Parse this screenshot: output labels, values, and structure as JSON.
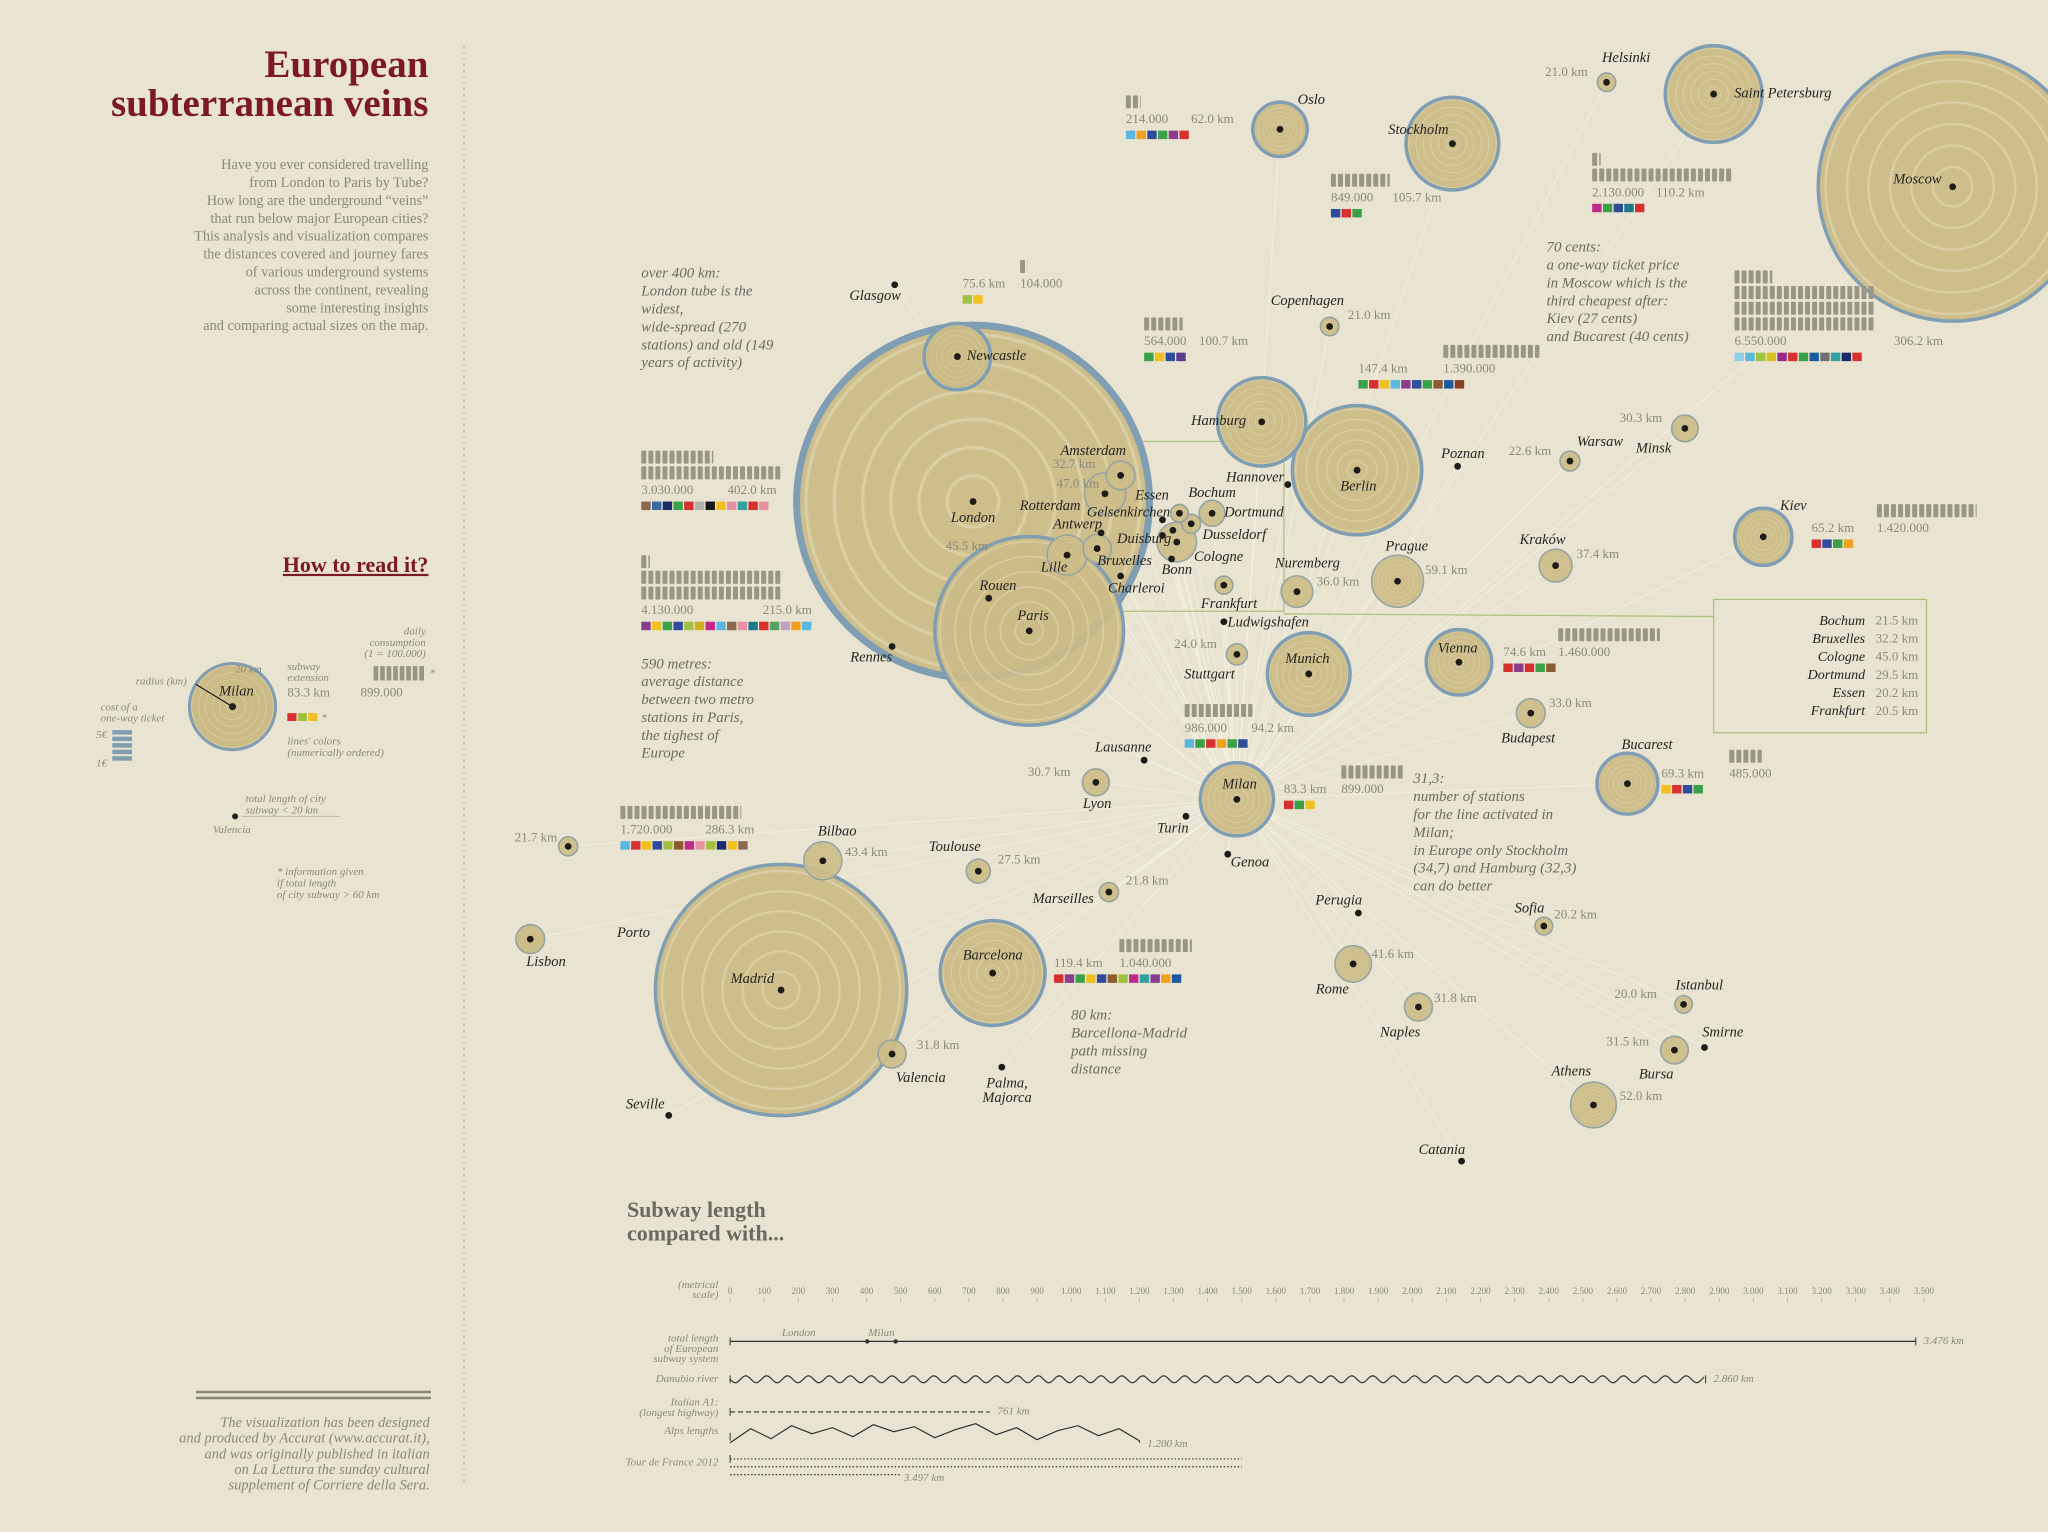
{
  "header": {
    "title": [
      "European",
      "subterranean veins"
    ],
    "intro": [
      "Have you ever considered travelling",
      "from London to Paris by Tube?",
      "How long are the underground “veins”",
      "that run below major European cities?",
      "This analysis and visualization compares",
      "the distances covered and journey fares",
      "of various underground systems",
      "across the continent, revealing",
      "some interesting insights",
      "and comparing actual sizes on the map."
    ]
  },
  "how_to_read": {
    "heading": "How to read it?",
    "radius": "radius (km)",
    "radius_sample": "20 km",
    "city": "Milan",
    "extension": [
      "subway",
      "extension"
    ],
    "extension_sample": "83.3 km",
    "consumption": [
      "daily",
      "consumption",
      "(1 = 100.000)"
    ],
    "consumption_sample": "899.000",
    "asterisk": "*",
    "ticket": [
      "cost of a",
      "one-way ticket"
    ],
    "ticket_scale": [
      "5€",
      "1€"
    ],
    "colors": [
      "lines' colors",
      "(numerically ordered)"
    ],
    "small": [
      "total length of city",
      "subway < 20 km"
    ],
    "small_city": "Valencia",
    "note": [
      "* information given",
      "if total length",
      "of city subway > 60 km"
    ]
  },
  "cities": [
    {
      "name": "Oslo",
      "km": 62.0,
      "km_label": "62.0 km",
      "riders": 214000,
      "riders_label": "214.000",
      "colors": [
        "#5bb6e0",
        "#f0a020",
        "#2e4c9a",
        "#3aa04a",
        "#8a3d8f",
        "#d63030"
      ]
    },
    {
      "name": "Stockholm",
      "km": 105.7,
      "km_label": "105.7 km",
      "riders": 849000,
      "riders_label": "849.000",
      "colors": [
        "#2e4c9a",
        "#d63030",
        "#3aa04a"
      ]
    },
    {
      "name": "Helsinki",
      "km": 21.0,
      "km_label": "21.0 km"
    },
    {
      "name": "Saint Petersburg",
      "km": 110.2,
      "km_label": "110.2 km",
      "riders": 2130000,
      "riders_label": "2.130.000",
      "colors": [
        "#c0288a",
        "#3aa04a",
        "#2e4c9a",
        "#1a7a8a",
        "#d63030"
      ]
    },
    {
      "name": "Moscow",
      "km": 306.2,
      "km_label": "306.2 km",
      "riders": 6550000,
      "riders_label": "6.550.000",
      "colors": [
        "#8fd0e8",
        "#5bb6e0",
        "#a0c040",
        "#d8c020",
        "#9a2a8a",
        "#d63030",
        "#3aa04a",
        "#1a5aa0",
        "#707070",
        "#30a0a0",
        "#1a2a6a",
        "#d63030"
      ]
    },
    {
      "name": "Copenhagen",
      "km": 21.0,
      "km_label": "21.0 km"
    },
    {
      "name": "Hamburg",
      "km": 100.7,
      "km_label": "100.7 km",
      "riders": 564000,
      "riders_label": "564.000",
      "colors": [
        "#3aa04a",
        "#f0c020",
        "#2e4c9a",
        "#5a3a8a"
      ]
    },
    {
      "name": "Berlin",
      "km": 147.4,
      "km_label": "147.4 km",
      "riders": 1390000,
      "riders_label": "1.390.000",
      "colors": [
        "#3aa04a",
        "#d63030",
        "#f0c020",
        "#5bb6e0",
        "#8a3d8f",
        "#2e4c9a",
        "#3aa04a",
        "#8a5a30",
        "#1a5aa0",
        "#8a3d20"
      ]
    },
    {
      "name": "Newcastle",
      "km": 75.6,
      "km_label": "75.6 km",
      "riders": 104000,
      "riders_label": "104.000",
      "colors": [
        "#a0c040",
        "#f0c020"
      ]
    },
    {
      "name": "London",
      "km": 402.0,
      "km_label": "402.0 km",
      "riders": 3030000,
      "riders_label": "3.030.000",
      "colors": [
        "#8a6a50",
        "#3a6aa0",
        "#1a2a6a",
        "#3aa04a",
        "#d63030",
        "#b0b0b0",
        "#181818",
        "#f0c020",
        "#e890a0",
        "#30a0a0",
        "#d63030",
        "#e890a0"
      ]
    },
    {
      "name": "Paris",
      "km": 215.0,
      "km_label": "215.0 km",
      "riders": 4130000,
      "riders_label": "4.130.000",
      "colors": [
        "#8a3d8f",
        "#f0c020",
        "#3aa04a",
        "#2e4c9a",
        "#a0c040",
        "#d0b020",
        "#c0288a",
        "#5bb6e0",
        "#8a6a50",
        "#e890a0",
        "#1a7a8a",
        "#d63030",
        "#5aa060",
        "#c0a0c0",
        "#f0a020",
        "#5bb6e0"
      ]
    },
    {
      "name": "Amsterdam",
      "km": 32.7,
      "km_label": "32.7 km"
    },
    {
      "name": "Rotterdam",
      "km": 47.0,
      "km_label": "47.0 km"
    },
    {
      "name": "Lille",
      "km": 45.5,
      "km_label": "45.5 km"
    },
    {
      "name": "Warsaw",
      "km": 22.6,
      "km_label": "22.6 km"
    },
    {
      "name": "Minsk",
      "km": 30.3,
      "km_label": "30.3 km"
    },
    {
      "name": "Prague",
      "km": 59.1,
      "km_label": "59.1 km"
    },
    {
      "name": "Kraków",
      "km": 37.4,
      "km_label": "37.4 km"
    },
    {
      "name": "Nuremberg",
      "km": 36.0,
      "km_label": "36.0 km"
    },
    {
      "name": "Kiev",
      "km": 65.2,
      "km_label": "65.2 km",
      "riders": 1420000,
      "riders_label": "1.420.000",
      "colors": [
        "#d63030",
        "#2e4c9a",
        "#3aa04a",
        "#f0a020"
      ]
    },
    {
      "name": "Munich",
      "km": 94.2,
      "km_label": "94.2 km",
      "riders": 986000,
      "riders_label": "986.000",
      "colors": [
        "#5bb6e0",
        "#3aa04a",
        "#d63030",
        "#f0a020",
        "#3aa04a",
        "#2e4c9a"
      ]
    },
    {
      "name": "Stuttgart",
      "km": 24.0,
      "km_label": "24.0 km"
    },
    {
      "name": "Vienna",
      "km": 74.6,
      "km_label": "74.6 km",
      "riders": 1460000,
      "riders_label": "1.460.000",
      "colors": [
        "#d63030",
        "#8a3d8f",
        "#d63030",
        "#3aa04a",
        "#8a5a30"
      ]
    },
    {
      "name": "Budapest",
      "km": 33.0,
      "km_label": "33.0 km"
    },
    {
      "name": "Bucarest",
      "km": 69.3,
      "km_label": "69.3 km",
      "riders": 485000,
      "riders_label": "485.000",
      "colors": [
        "#f0c020",
        "#d63030",
        "#2e4c9a",
        "#3aa04a"
      ]
    },
    {
      "name": "Milan",
      "km": 83.3,
      "km_label": "83.3 km",
      "riders": 899000,
      "riders_label": "899.000",
      "colors": [
        "#d63030",
        "#3aa04a",
        "#f0c020"
      ]
    },
    {
      "name": "Lyon",
      "km": 30.7,
      "km_label": "30.7 km"
    },
    {
      "name": "Toulouse",
      "km": 27.5,
      "km_label": "27.5 km"
    },
    {
      "name": "Marseilles",
      "km": 21.8,
      "km_label": "21.8 km"
    },
    {
      "name": "Bilbao",
      "km": 43.4,
      "km_label": "43.4 km"
    },
    {
      "name": "Porto",
      "km": 21.7,
      "km_label": "21.7 km"
    },
    {
      "name": "Madrid",
      "km": 286.3,
      "km_label": "286.3 km",
      "riders": 1720000,
      "riders_label": "1.720.000",
      "colors": [
        "#5bb6e0",
        "#d63030",
        "#f0c020",
        "#2e4c9a",
        "#a0c040",
        "#8a5a30",
        "#c0288a",
        "#e890a0",
        "#a0c040",
        "#1a2a6a",
        "#f0c020",
        "#8a6a50"
      ]
    },
    {
      "name": "Barcelona",
      "km": 119.4,
      "km_label": "119.4 km",
      "riders": 1040000,
      "riders_label": "1.040.000",
      "colors": [
        "#d63030",
        "#8a3d8f",
        "#3aa04a",
        "#f0c020",
        "#2e4c9a",
        "#8a5a30",
        "#a0c040",
        "#c0288a",
        "#30a0a0",
        "#8a3d8f",
        "#f0a020",
        "#1a5aa0"
      ]
    },
    {
      "name": "Valencia",
      "km": 31.8,
      "km_label": "31.8 km"
    },
    {
      "name": "Rome",
      "km": 41.6,
      "km_label": "41.6 km"
    },
    {
      "name": "Naples",
      "km": 31.8,
      "km_label": "31.8 km"
    },
    {
      "name": "Sofia",
      "km": 20.2,
      "km_label": "20.2 km"
    },
    {
      "name": "Istanbul",
      "km": 20.0,
      "km_label": "20.0 km"
    },
    {
      "name": "Bursa",
      "km": 31.5,
      "km_label": "31.5 km"
    },
    {
      "name": "Athens",
      "km": 52.0,
      "km_label": "52.0 km"
    }
  ],
  "places": [
    {
      "name": "Glasgow"
    },
    {
      "name": "Rennes"
    },
    {
      "name": "Rouen"
    },
    {
      "name": "Antwerp"
    },
    {
      "name": "Gelsenkirchen"
    },
    {
      "name": "Duisburg"
    },
    {
      "name": "Dusseldorf"
    },
    {
      "name": "Bonn"
    },
    {
      "name": "Charleroi"
    },
    {
      "name": "Hannover"
    },
    {
      "name": "Poznan"
    },
    {
      "name": "Ludwigshafen"
    },
    {
      "name": "Lausanne"
    },
    {
      "name": "Turin"
    },
    {
      "name": "Genoa"
    },
    {
      "name": "Perugia"
    },
    {
      "name": "Lisbon"
    },
    {
      "name": [
        "Palma,",
        "Majorca"
      ]
    },
    {
      "name": "Seville"
    },
    {
      "name": "Catania"
    },
    {
      "name": "Smirne"
    }
  ],
  "rhine_box": {
    "rows": [
      {
        "name": "Bochum",
        "km": 21.5,
        "km_label": "21.5 km"
      },
      {
        "name": "Bruxelles",
        "km": 32.2,
        "km_label": "32.2 km"
      },
      {
        "name": "Cologne",
        "km": 45.0,
        "km_label": "45.0 km"
      },
      {
        "name": "Dortmund",
        "km": 29.5,
        "km_label": "29.5 km"
      },
      {
        "name": "Essen",
        "km": 20.2,
        "km_label": "20.2 km"
      },
      {
        "name": "Frankfurt",
        "km": 20.5,
        "km_label": "20.5 km"
      }
    ]
  },
  "annotations": [
    [
      "over 400 km:",
      "London tube is the",
      "widest,",
      "wide-spread (270",
      "stations) and old (149",
      "years of activity)"
    ],
    [
      "590 metres:",
      "average distance",
      "between two metro",
      "stations in Paris,",
      "the tighest of",
      "Europe"
    ],
    [
      "70 cents:",
      "a one-way ticket price",
      "in Moscow which is the",
      "third cheapest after:",
      "Kiev (27 cents)",
      "and Bucarest (40 cents)"
    ],
    [
      "31,3:",
      "number of stations",
      "for the line activated in",
      "Milan;",
      "in Europe only Stockholm",
      "(34,7) and Hamburg (32,3)",
      "can do better"
    ],
    [
      "80 km:",
      "Barcellona-Madrid",
      "path missing",
      "distance"
    ]
  ],
  "comparison": {
    "title": [
      "Subway length",
      "compared with..."
    ],
    "scale_label": [
      "(metrical",
      "scale)"
    ],
    "ticks": [
      0,
      100,
      200,
      300,
      400,
      500,
      600,
      700,
      800,
      900,
      {
        "value": 1000,
        "label": "1.000"
      },
      {
        "value": 1100,
        "label": "1.100"
      },
      {
        "value": 1200,
        "label": "1.200"
      },
      {
        "value": 1300,
        "label": "1.300"
      },
      {
        "value": 1400,
        "label": "1.400"
      },
      {
        "value": 1500,
        "label": "1.500"
      },
      {
        "value": 1600,
        "label": "1.600"
      },
      {
        "value": 1700,
        "label": "1.700"
      },
      {
        "value": 1800,
        "label": "1.800"
      },
      {
        "value": 1900,
        "label": "1.900"
      },
      {
        "value": 2000,
        "label": "2.000"
      },
      {
        "value": 2100,
        "label": "2.100"
      },
      {
        "value": 2200,
        "label": "2.200"
      },
      {
        "value": 2300,
        "label": "2.300"
      },
      {
        "value": 2400,
        "label": "2.400"
      },
      {
        "value": 2500,
        "label": "2.500"
      },
      {
        "value": 2600,
        "label": "2.600"
      },
      {
        "value": 2700,
        "label": "2.700"
      },
      {
        "value": 2800,
        "label": "2.800"
      },
      {
        "value": 2900,
        "label": "2.900"
      },
      {
        "value": 3000,
        "label": "3.000"
      },
      {
        "value": 3100,
        "label": "3.100"
      },
      {
        "value": 3200,
        "label": "3.200"
      },
      {
        "value": 3300,
        "label": "3.300"
      },
      {
        "value": 3400,
        "label": "3.400"
      },
      {
        "value": 3500,
        "label": "3.500"
      }
    ],
    "rows": [
      {
        "label": [
          "total length",
          "of European",
          "subway system"
        ],
        "value": 3476,
        "value_label": "3.476 km"
      },
      {
        "label": [
          "Danubio river"
        ],
        "value": 2860,
        "value_label": "2.860 km"
      },
      {
        "label": [
          "Italian A1:",
          "(longest highway)"
        ],
        "value": 761,
        "value_label": "761 km"
      },
      {
        "label": [
          "Alps lengths"
        ],
        "value": 1200,
        "value_label": "1.200 km"
      },
      {
        "label": [
          "Tour de France 2012"
        ],
        "value": 3497,
        "value_label": "3.497 km"
      }
    ]
  },
  "credits": [
    "The visualization has been designed",
    "and produced by Accurat (www.accurat.it),",
    "and was originally published in italian",
    "on La Lettura the sunday cultural",
    "supplement of Corriere della Sera."
  ]
}
